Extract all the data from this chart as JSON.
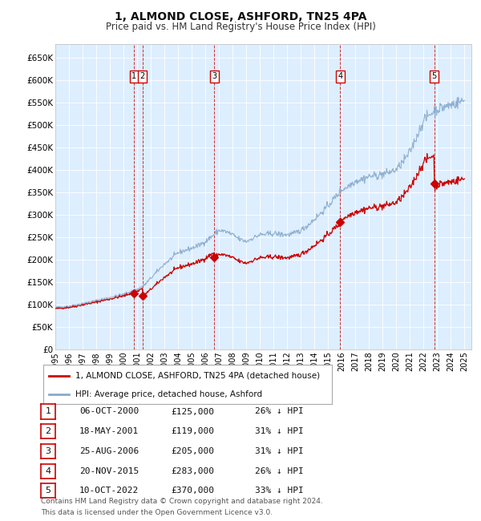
{
  "title": "1, ALMOND CLOSE, ASHFORD, TN25 4PA",
  "subtitle": "Price paid vs. HM Land Registry's House Price Index (HPI)",
  "ylim": [
    0,
    680000
  ],
  "yticks": [
    0,
    50000,
    100000,
    150000,
    200000,
    250000,
    300000,
    350000,
    400000,
    450000,
    500000,
    550000,
    600000,
    650000
  ],
  "ytick_labels": [
    "£0",
    "£50K",
    "£100K",
    "£150K",
    "£200K",
    "£250K",
    "£300K",
    "£350K",
    "£400K",
    "£450K",
    "£500K",
    "£550K",
    "£600K",
    "£650K"
  ],
  "background_color": "#ffffff",
  "plot_bg_color": "#ddeeff",
  "grid_color": "#ffffff",
  "sale_color": "#cc0000",
  "hpi_line_color": "#88aacc",
  "sale_line_color": "#cc0000",
  "transactions": [
    {
      "num": 1,
      "price": 125000,
      "x": 2000.76,
      "label": "06-OCT-2000",
      "pct": "26% ↓ HPI"
    },
    {
      "num": 2,
      "price": 119000,
      "x": 2001.38,
      "label": "18-MAY-2001",
      "pct": "31% ↓ HPI"
    },
    {
      "num": 3,
      "price": 205000,
      "x": 2006.65,
      "label": "25-AUG-2006",
      "pct": "31% ↓ HPI"
    },
    {
      "num": 4,
      "price": 283000,
      "x": 2015.89,
      "label": "20-NOV-2015",
      "pct": "26% ↓ HPI"
    },
    {
      "num": 5,
      "price": 370000,
      "x": 2022.77,
      "label": "10-OCT-2022",
      "pct": "33% ↓ HPI"
    }
  ],
  "legend_line1": "1, ALMOND CLOSE, ASHFORD, TN25 4PA (detached house)",
  "legend_line2": "HPI: Average price, detached house, Ashford",
  "footer1": "Contains HM Land Registry data © Crown copyright and database right 2024.",
  "footer2": "This data is licensed under the Open Government Licence v3.0.",
  "xlim": [
    1995.0,
    2025.5
  ],
  "xtick_years": [
    1995,
    1996,
    1997,
    1998,
    1999,
    2000,
    2001,
    2002,
    2003,
    2004,
    2005,
    2006,
    2007,
    2008,
    2009,
    2010,
    2011,
    2012,
    2013,
    2014,
    2015,
    2016,
    2017,
    2018,
    2019,
    2020,
    2021,
    2022,
    2023,
    2024,
    2025
  ],
  "hpi_anchors": {
    "1995": 93000,
    "1995.5": 94500,
    "1996": 96000,
    "1996.5": 98500,
    "1997": 102000,
    "1997.5": 105000,
    "1998": 108000,
    "1998.5": 112000,
    "1999": 115000,
    "1999.5": 119000,
    "2000": 122000,
    "2000.5": 128000,
    "2001": 133000,
    "2001.5": 142000,
    "2002": 158000,
    "2002.5": 174000,
    "2003": 190000,
    "2003.5": 202000,
    "2004": 215000,
    "2004.5": 220000,
    "2005": 225000,
    "2005.5": 231000,
    "2006": 240000,
    "2006.5": 252000,
    "2007": 265000,
    "2007.5": 262000,
    "2008": 255000,
    "2008.5": 245000,
    "2009": 240000,
    "2009.5": 248000,
    "2010": 255000,
    "2010.5": 256000,
    "2011": 258000,
    "2011.5": 256000,
    "2012": 255000,
    "2012.5": 258000,
    "2013": 265000,
    "2013.5": 276000,
    "2014": 290000,
    "2014.5": 304000,
    "2015": 320000,
    "2015.5": 338000,
    "2016": 355000,
    "2016.5": 364000,
    "2017": 375000,
    "2017.5": 379000,
    "2018": 385000,
    "2018.5": 387000,
    "2019": 390000,
    "2019.5": 395000,
    "2020": 400000,
    "2020.5": 418000,
    "2021": 440000,
    "2021.5": 475000,
    "2022": 510000,
    "2022.5": 525000,
    "2023": 535000,
    "2023.5": 540000,
    "2024": 545000,
    "2024.5": 550000,
    "2025": 555000
  }
}
